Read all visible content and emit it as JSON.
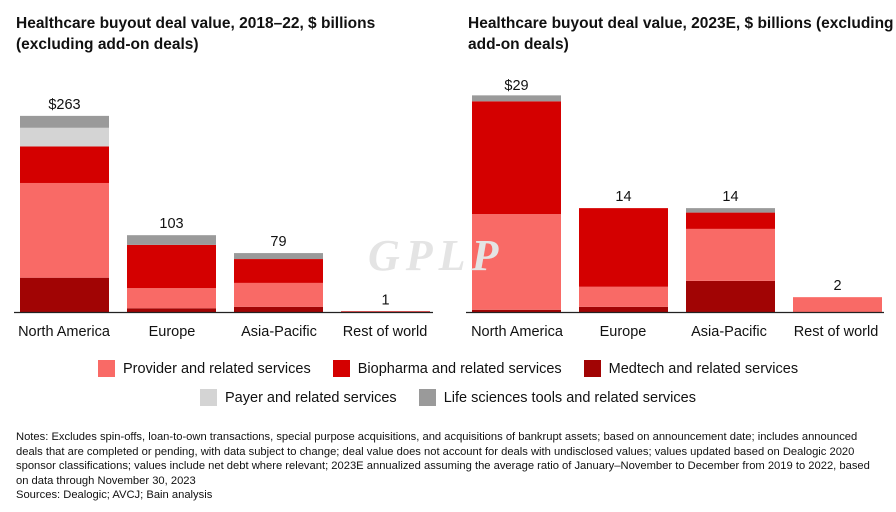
{
  "colors": {
    "provider": "#f96a66",
    "biopharma": "#d40000",
    "medtech": "#a10404",
    "payer": "#d4d4d4",
    "lifesci": "#9a9a9a",
    "axis": "#222222"
  },
  "series_keys": [
    "medtech",
    "provider",
    "biopharma",
    "payer",
    "lifesci"
  ],
  "legend": {
    "row1": [
      {
        "key": "provider",
        "label": "Provider and related services"
      },
      {
        "key": "biopharma",
        "label": "Biopharma and related services"
      },
      {
        "key": "medtech",
        "label": "Medtech and related services"
      }
    ],
    "row2": [
      {
        "key": "payer",
        "label": "Payer and related services"
      },
      {
        "key": "lifesci",
        "label": "Life sciences tools and related services"
      }
    ]
  },
  "chart_data": [
    {
      "type": "bar",
      "stacked": true,
      "title": "Healthcare buyout deal value, 2018–22, $ billions (excluding add-on deals)",
      "categories": [
        "North America",
        "Europe",
        "Asia-Pacific",
        "Rest of world"
      ],
      "totals_labels": [
        "$263",
        "103",
        "79",
        "1"
      ],
      "totals": [
        263,
        103,
        79,
        1
      ],
      "series": [
        {
          "key": "medtech",
          "name": "Medtech and related services",
          "values": [
            46,
            5,
            7,
            0.2
          ]
        },
        {
          "key": "provider",
          "name": "Provider and related services",
          "values": [
            127,
            27,
            32,
            0.4
          ]
        },
        {
          "key": "biopharma",
          "name": "Biopharma and related services",
          "values": [
            49,
            58,
            32,
            0.4
          ]
        },
        {
          "key": "payer",
          "name": "Payer and related services",
          "values": [
            25,
            0,
            0,
            0
          ]
        },
        {
          "key": "lifesci",
          "name": "Life sciences tools and related services",
          "values": [
            16,
            13,
            8,
            0
          ]
        }
      ],
      "ylim": [
        0,
        295
      ]
    },
    {
      "type": "bar",
      "stacked": true,
      "title": "Healthcare buyout deal value, 2023E, $ billions (excluding add-on deals)",
      "categories": [
        "North America",
        "Europe",
        "Asia-Pacific",
        "Rest of world"
      ],
      "totals_labels": [
        "$29",
        "14",
        "14",
        "2"
      ],
      "totals": [
        29,
        14,
        14,
        2
      ],
      "series": [
        {
          "key": "medtech",
          "name": "Medtech and related services",
          "values": [
            0.3,
            0.7,
            4.2,
            0
          ]
        },
        {
          "key": "provider",
          "name": "Provider and related services",
          "values": [
            12.9,
            2.7,
            7.0,
            2
          ]
        },
        {
          "key": "biopharma",
          "name": "Biopharma and related services",
          "values": [
            15.2,
            10.6,
            2.2,
            0
          ]
        },
        {
          "key": "payer",
          "name": "Payer and related services",
          "values": [
            0,
            0,
            0,
            0
          ]
        },
        {
          "key": "lifesci",
          "name": "Life sciences tools and related services",
          "values": [
            0.8,
            0,
            0.6,
            0
          ]
        }
      ],
      "ylim": [
        0,
        31
      ]
    }
  ],
  "notes": "Notes: Excludes spin-offs, loan-to-own transactions, special purpose acquisitions, and acquisitions of bankrupt assets; based on announcement date; includes announced deals that are completed or pending, with data subject to change; deal value does not account for deals with undisclosed values; values updated based on Dealogic 2020 sponsor classifications; values include net debt where relevant; 2023E annualized assuming the average ratio of January–November to December from 2019 to 2022, based on data through November 30, 2023",
  "sources": "Sources: Dealogic; AVCJ; Bain analysis",
  "watermark": "GPLP"
}
